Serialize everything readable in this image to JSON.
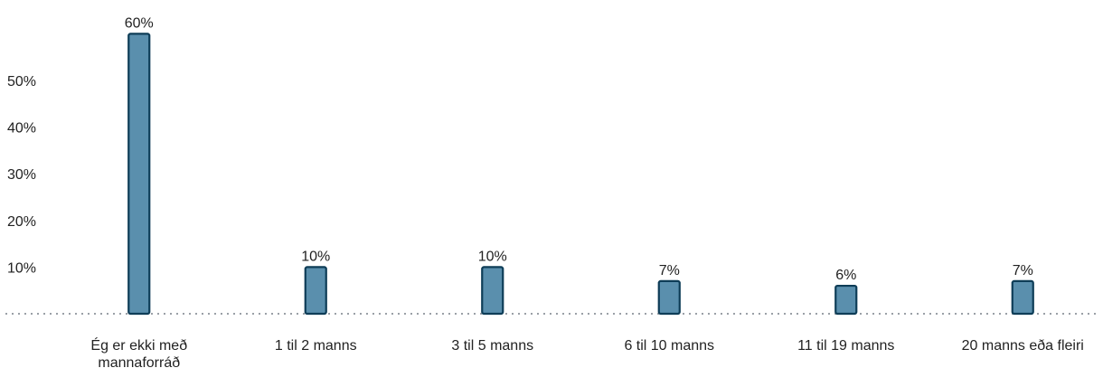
{
  "chart_data": {
    "type": "bar",
    "categories": [
      [
        "Ég er ekki með",
        "mannaforráð"
      ],
      [
        "1 til 2 manns"
      ],
      [
        "3 til 5 manns"
      ],
      [
        "6 til 10 manns"
      ],
      [
        "11 til 19 manns"
      ],
      [
        "20 manns eða fleiri"
      ]
    ],
    "values": [
      60,
      10,
      10,
      7,
      6,
      7
    ],
    "value_labels": [
      "60%",
      "10%",
      "10%",
      "7%",
      "6%",
      "7%"
    ],
    "y_ticks": [
      10,
      20,
      30,
      40,
      50
    ],
    "y_tick_labels": [
      "10%",
      "20%",
      "30%",
      "40%",
      "50%"
    ],
    "ylim": [
      0,
      60
    ],
    "grid": false,
    "baseline": "dotted",
    "colors": {
      "bar_fill": "#5a8fad",
      "bar_stroke": "#0e3d57",
      "baseline": "#9aa0a6"
    }
  }
}
